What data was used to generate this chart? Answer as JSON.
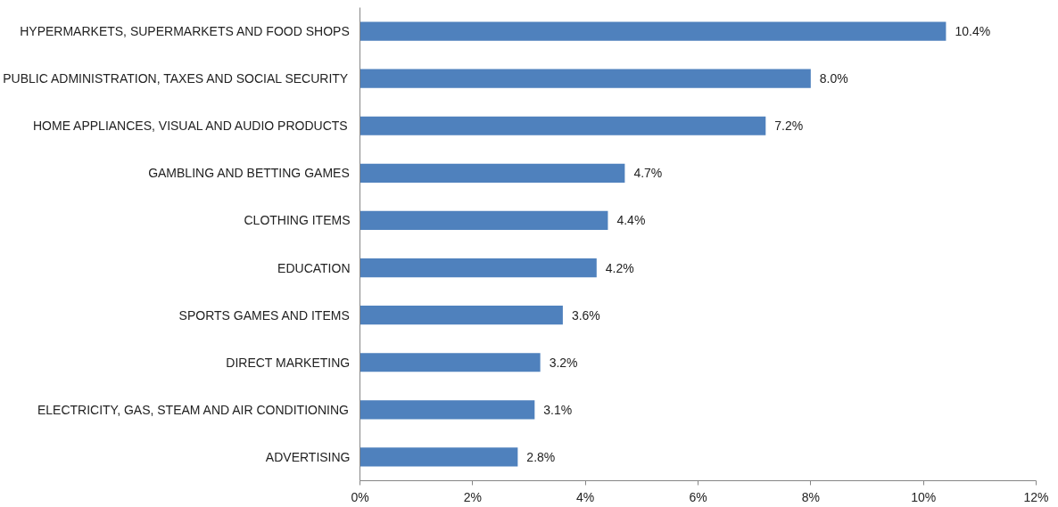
{
  "chart_data": {
    "type": "bar",
    "orientation": "horizontal",
    "categories": [
      "HYPERMARKETS, SUPERMARKETS AND FOOD SHOPS",
      "PUBLIC ADMINISTRATION, TAXES AND SOCIAL SECURITY",
      "HOME APPLIANCES, VISUAL AND AUDIO PRODUCTS",
      "GAMBLING AND BETTING GAMES",
      "CLOTHING ITEMS",
      "EDUCATION",
      "SPORTS GAMES AND ITEMS",
      "DIRECT MARKETING",
      "ELECTRICITY, GAS, STEAM AND AIR CONDITIONING",
      "ADVERTISING"
    ],
    "values": [
      10.4,
      8.0,
      7.2,
      4.7,
      4.4,
      4.2,
      3.6,
      3.2,
      3.1,
      2.8
    ],
    "value_labels": [
      "10.4%",
      "8.0%",
      "7.2%",
      "4.7%",
      "4.4%",
      "4.2%",
      "3.6%",
      "3.2%",
      "3.1%",
      "2.8%"
    ],
    "color": "#4f81bd",
    "xlim": [
      0,
      12
    ],
    "xticks": [
      {
        "value": 0,
        "label": "0%"
      },
      {
        "value": 2,
        "label": "2%"
      },
      {
        "value": 4,
        "label": "4%"
      },
      {
        "value": 6,
        "label": "6%"
      },
      {
        "value": 8,
        "label": "8%"
      },
      {
        "value": 10,
        "label": "10%"
      },
      {
        "value": 12,
        "label": "12%"
      }
    ],
    "grid": false
  }
}
